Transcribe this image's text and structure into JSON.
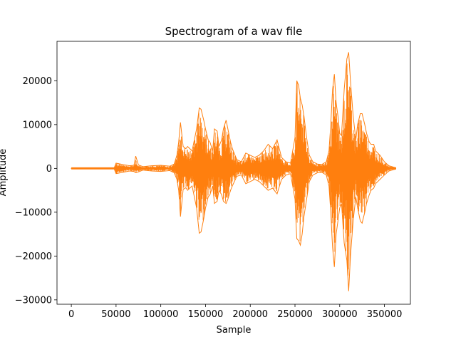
{
  "chart_data": {
    "type": "line",
    "title": "Spectrogram of a wav file",
    "xlabel": "Sample",
    "ylabel": "Amplitude",
    "xlim": [
      -16000,
      379000
    ],
    "ylim": [
      -31000,
      29000
    ],
    "xticks": [
      0,
      50000,
      100000,
      150000,
      200000,
      250000,
      300000,
      350000
    ],
    "xtick_labels": [
      "0",
      "50000",
      "100000",
      "150000",
      "200000",
      "250000",
      "300000",
      "350000"
    ],
    "yticks": [
      -30000,
      -20000,
      -10000,
      0,
      10000,
      20000
    ],
    "ytick_labels": [
      "−30000",
      "−20000",
      "−10000",
      "0",
      "10000",
      "20000"
    ],
    "grid": false,
    "series": [
      {
        "color": "#ff7f0e",
        "x": [
          0,
          48000,
          50000,
          55000,
          60000,
          65000,
          70000,
          72000,
          75000,
          80000,
          90000,
          100000,
          105000,
          110000,
          115000,
          118000,
          120000,
          122000,
          125000,
          128000,
          130000,
          135000,
          140000,
          143000,
          145000,
          148000,
          150000,
          153000,
          155000,
          158000,
          160000,
          163000,
          165000,
          168000,
          170000,
          173000,
          175000,
          178000,
          180000,
          185000,
          190000,
          195000,
          200000,
          205000,
          210000,
          215000,
          220000,
          225000,
          230000,
          235000,
          240000,
          245000,
          250000,
          252000,
          254000,
          256000,
          258000,
          260000,
          263000,
          266000,
          270000,
          275000,
          280000,
          285000,
          288000,
          290000,
          292000,
          294000,
          296000,
          298000,
          300000,
          302000,
          305000,
          308000,
          310000,
          312000,
          315000,
          318000,
          320000,
          323000,
          325000,
          328000,
          330000,
          333000,
          335000,
          338000,
          340000,
          345000,
          350000,
          355000,
          360000,
          363000
        ],
        "y_max": [
          150,
          150,
          1200,
          1000,
          800,
          600,
          700,
          2800,
          800,
          400,
          600,
          700,
          600,
          500,
          1000,
          3000,
          6000,
          10500,
          5000,
          4500,
          5000,
          4000,
          9000,
          13800,
          13500,
          11000,
          9000,
          6500,
          6000,
          4000,
          9000,
          8500,
          5000,
          6500,
          9000,
          11000,
          9000,
          6000,
          4500,
          2000,
          1500,
          3500,
          3000,
          2500,
          3000,
          4000,
          5500,
          4500,
          6500,
          2500,
          1500,
          1200,
          7000,
          20000,
          19000,
          16000,
          14500,
          12000,
          7000,
          3000,
          1500,
          1000,
          900,
          1500,
          4000,
          10000,
          18000,
          21500,
          15000,
          12000,
          8000,
          7500,
          18000,
          25000,
          26500,
          20000,
          12000,
          6500,
          10000,
          12500,
          12500,
          10000,
          8000,
          6000,
          5500,
          5500,
          4000,
          3000,
          1500,
          600,
          300,
          150
        ],
        "y_min": [
          -150,
          -150,
          -1200,
          -1000,
          -800,
          -600,
          -700,
          -1000,
          -800,
          -400,
          -600,
          -700,
          -600,
          -500,
          -1000,
          -2500,
          -5000,
          -11000,
          -4800,
          -4400,
          -5000,
          -4000,
          -9000,
          -14800,
          -14500,
          -11500,
          -9000,
          -6500,
          -6000,
          -4000,
          -8000,
          -7500,
          -5000,
          -6000,
          -7500,
          -8000,
          -7000,
          -5000,
          -4000,
          -1800,
          -1500,
          -3500,
          -3000,
          -2500,
          -3000,
          -4000,
          -5000,
          -4500,
          -5800,
          -2500,
          -1500,
          -1200,
          -7000,
          -16000,
          -16500,
          -17500,
          -15000,
          -11000,
          -7000,
          -3000,
          -1500,
          -1000,
          -900,
          -1500,
          -4000,
          -10000,
          -18000,
          -22500,
          -15000,
          -12000,
          -9000,
          -8000,
          -17000,
          -21000,
          -28000,
          -20000,
          -12000,
          -6500,
          -9000,
          -12000,
          -12500,
          -10000,
          -8000,
          -6000,
          -5000,
          -4500,
          -3500,
          -2500,
          -1500,
          -600,
          -300,
          -150
        ]
      }
    ]
  }
}
